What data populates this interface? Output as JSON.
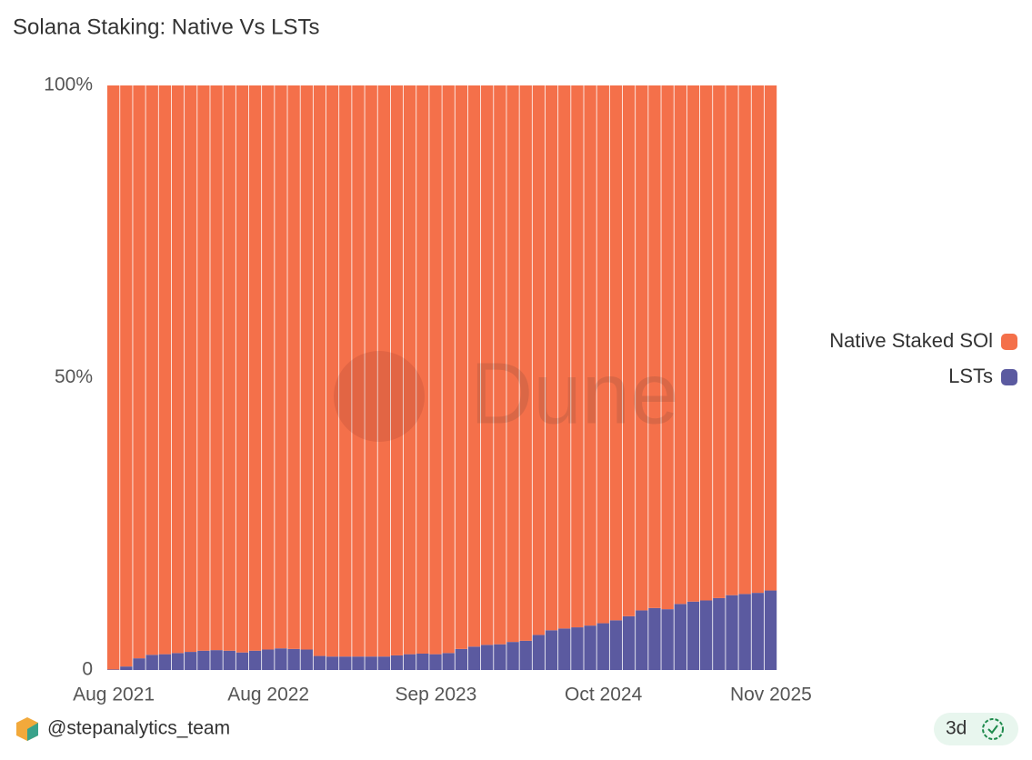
{
  "chart_data": {
    "type": "stacked_bar",
    "title": "Solana Staking: Native Vs LSTs",
    "categories": [
      "Aug 2021",
      null,
      null,
      null,
      null,
      null,
      null,
      null,
      null,
      null,
      null,
      null,
      "Aug 2022",
      null,
      null,
      null,
      null,
      null,
      null,
      null,
      null,
      null,
      null,
      null,
      null,
      "Sep 2023",
      null,
      null,
      null,
      null,
      null,
      null,
      null,
      null,
      null,
      null,
      null,
      null,
      "Oct 2024",
      null,
      null,
      null,
      null,
      null,
      null,
      null,
      null,
      null,
      null,
      null,
      null,
      "Nov 2025"
    ],
    "series": [
      {
        "name": "Native Staked SOl",
        "color": "#f4704a",
        "values": [
          99.9,
          99.4,
          98.0,
          97.4,
          97.3,
          97.1,
          96.9,
          96.7,
          96.6,
          96.7,
          97.0,
          96.7,
          96.5,
          96.3,
          96.4,
          96.5,
          97.6,
          97.7,
          97.7,
          97.7,
          97.7,
          97.7,
          97.5,
          97.3,
          97.2,
          97.3,
          97.1,
          96.4,
          96.0,
          95.7,
          95.6,
          95.2,
          95.0,
          94.0,
          93.2,
          92.9,
          92.7,
          92.4,
          92.0,
          91.5,
          90.8,
          89.8,
          89.4,
          89.6,
          88.7,
          88.3,
          88.1,
          87.7,
          87.2,
          87.0,
          86.8,
          86.4
        ]
      },
      {
        "name": "LSTs",
        "color": "#5b5aa0",
        "values": [
          0.1,
          0.6,
          2.0,
          2.6,
          2.7,
          2.9,
          3.1,
          3.3,
          3.4,
          3.3,
          3.0,
          3.3,
          3.5,
          3.7,
          3.6,
          3.5,
          2.4,
          2.3,
          2.3,
          2.3,
          2.3,
          2.3,
          2.5,
          2.7,
          2.8,
          2.7,
          2.9,
          3.6,
          4.0,
          4.3,
          4.4,
          4.8,
          5.0,
          6.0,
          6.8,
          7.1,
          7.3,
          7.6,
          8.0,
          8.5,
          9.2,
          10.2,
          10.6,
          10.4,
          11.3,
          11.7,
          11.9,
          12.3,
          12.8,
          13.0,
          13.2,
          13.6
        ]
      }
    ],
    "ylim": [
      0,
      100
    ],
    "yticks": [
      0,
      {
        "value": 50,
        "label": "50%"
      },
      {
        "value": 100,
        "label": "100%"
      }
    ],
    "legend": "right",
    "watermark": "Dune"
  },
  "footer": {
    "author": "@stepanalytics_team",
    "age": "3d"
  }
}
